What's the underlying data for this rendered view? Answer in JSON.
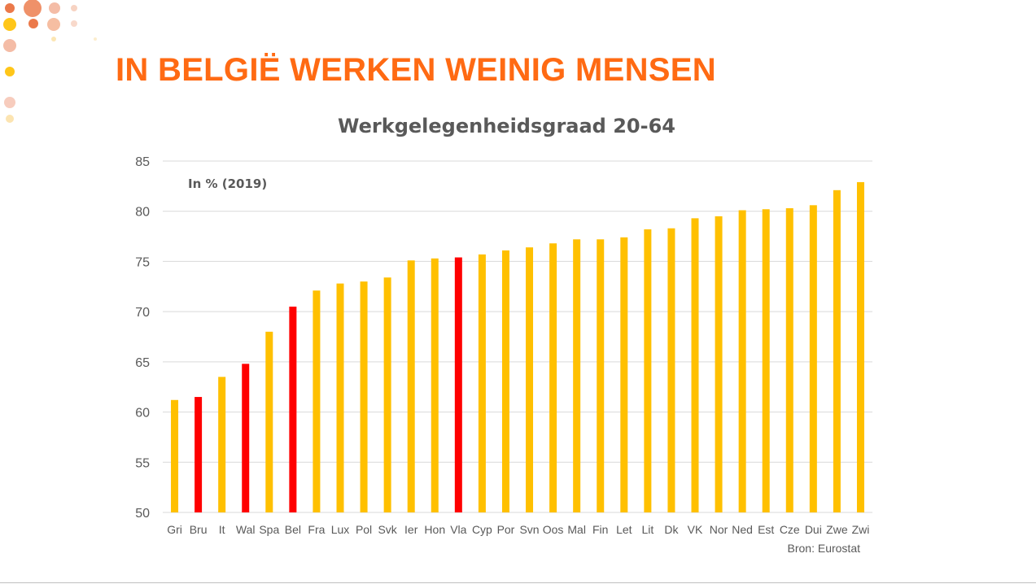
{
  "slide": {
    "title": "IN BELGIË WERKEN WEINIG MENSEN",
    "title_color": "#FF6A13"
  },
  "colors": {
    "bar_default": "#FFC000",
    "bar_highlight": "#FF0000",
    "gridline": "#D9D9D9",
    "axis_text": "#595959"
  },
  "chart_data": {
    "type": "bar",
    "title": "Werkgelegenheidsgraad 20-64",
    "subtitle": "In % (2019)",
    "source": "Bron: Eurostat",
    "xlabel": "",
    "ylabel": "",
    "ylim": [
      50,
      85
    ],
    "yticks": [
      50,
      55,
      60,
      65,
      70,
      75,
      80,
      85
    ],
    "grid": true,
    "categories": [
      "Gri",
      "Bru",
      "It",
      "Wal",
      "Spa",
      "Bel",
      "Fra",
      "Lux",
      "Pol",
      "Svk",
      "Ier",
      "Hon",
      "Vla",
      "Cyp",
      "Por",
      "Svn",
      "Oos",
      "Mal",
      "Fin",
      "Let",
      "Lit",
      "Dk",
      "VK",
      "Nor",
      "Ned",
      "Est",
      "Cze",
      "Dui",
      "Zwe",
      "Zwi"
    ],
    "values": [
      61.2,
      61.5,
      63.5,
      64.8,
      68.0,
      70.5,
      72.1,
      72.8,
      73.0,
      73.4,
      75.1,
      75.3,
      75.4,
      75.7,
      76.1,
      76.4,
      76.8,
      77.2,
      77.2,
      77.4,
      78.2,
      78.3,
      79.3,
      79.5,
      80.1,
      80.2,
      80.3,
      80.6,
      82.1,
      82.9
    ],
    "highlighted": [
      "Bru",
      "Wal",
      "Bel",
      "Vla"
    ]
  }
}
